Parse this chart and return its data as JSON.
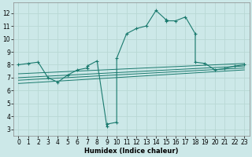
{
  "xlabel": "Humidex (Indice chaleur)",
  "ylabel": "",
  "bg_color": "#cce8e8",
  "grid_color": "#b8d8d4",
  "line_color": "#1a7a6e",
  "xlim": [
    -0.5,
    23.5
  ],
  "ylim": [
    2.5,
    12.8
  ],
  "xticks": [
    0,
    1,
    2,
    3,
    4,
    5,
    6,
    7,
    8,
    9,
    10,
    11,
    12,
    13,
    14,
    15,
    16,
    17,
    18,
    19,
    20,
    21,
    22,
    23
  ],
  "yticks": [
    3,
    4,
    5,
    6,
    7,
    8,
    9,
    10,
    11,
    12
  ],
  "main_series": [
    [
      0,
      8.0
    ],
    [
      1,
      8.1
    ],
    [
      2,
      8.2
    ],
    [
      3,
      7.0
    ],
    [
      4,
      6.65
    ],
    [
      5,
      7.2
    ],
    [
      6,
      7.6
    ],
    [
      7,
      7.75
    ],
    [
      7,
      7.9
    ],
    [
      8,
      8.3
    ],
    [
      9,
      3.2
    ],
    [
      9,
      3.4
    ],
    [
      10,
      3.55
    ],
    [
      10,
      8.5
    ],
    [
      11,
      10.4
    ],
    [
      12,
      10.8
    ],
    [
      13,
      11.0
    ],
    [
      14,
      12.2
    ],
    [
      15,
      11.5
    ],
    [
      15,
      11.4
    ],
    [
      16,
      11.4
    ],
    [
      17,
      11.7
    ],
    [
      18,
      10.4
    ],
    [
      18,
      8.2
    ],
    [
      19,
      8.1
    ],
    [
      20,
      7.6
    ],
    [
      21,
      7.7
    ],
    [
      22,
      7.9
    ],
    [
      23,
      8.0
    ]
  ],
  "trend_lines": [
    [
      [
        0,
        7.3
      ],
      [
        23,
        8.1
      ]
    ],
    [
      [
        0,
        7.0
      ],
      [
        23,
        7.9
      ]
    ],
    [
      [
        0,
        6.8
      ],
      [
        23,
        7.75
      ]
    ],
    [
      [
        0,
        6.55
      ],
      [
        23,
        7.6
      ]
    ]
  ]
}
